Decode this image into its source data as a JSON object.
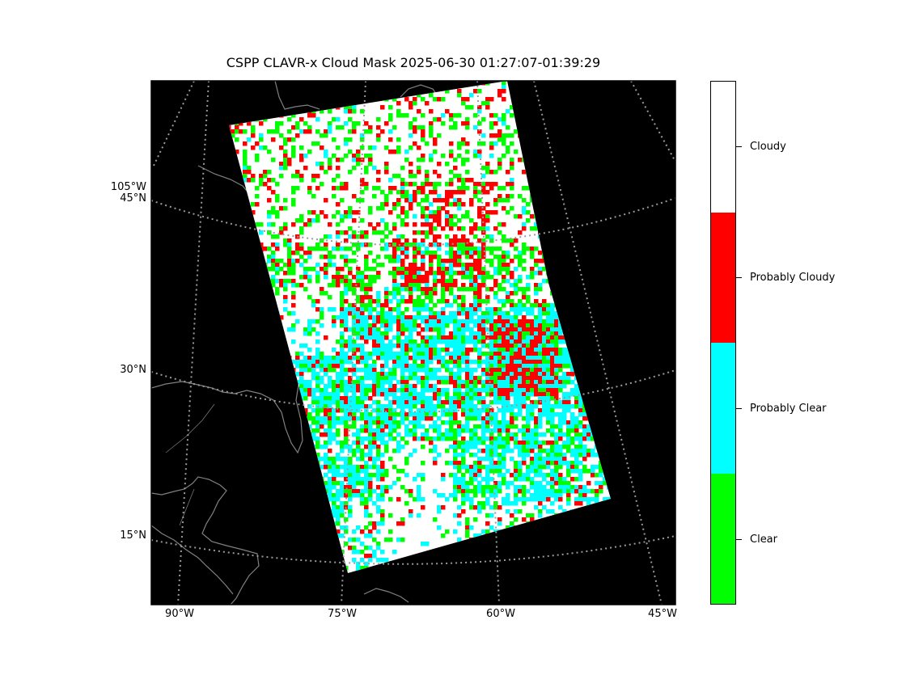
{
  "title": "CSPP CLAVR-x Cloud Mask 2025-06-30 01:27:07-01:39:29",
  "lat_labels": [
    "105°W",
    "45°N",
    "30°N",
    "15°N"
  ],
  "lon_labels": [
    "90°W",
    "75°W",
    "60°W",
    "45°W"
  ],
  "colorbar": {
    "classes": [
      {
        "label": "Cloudy",
        "color": "#ffffff"
      },
      {
        "label": "Probably Cloudy",
        "color": "#ff0000"
      },
      {
        "label": "Probably Clear",
        "color": "#00ffff"
      },
      {
        "label": "Clear",
        "color": "#00ff00"
      }
    ]
  },
  "colors": {
    "background": "#000000",
    "grid": "#888888",
    "coastline": "#808080"
  }
}
